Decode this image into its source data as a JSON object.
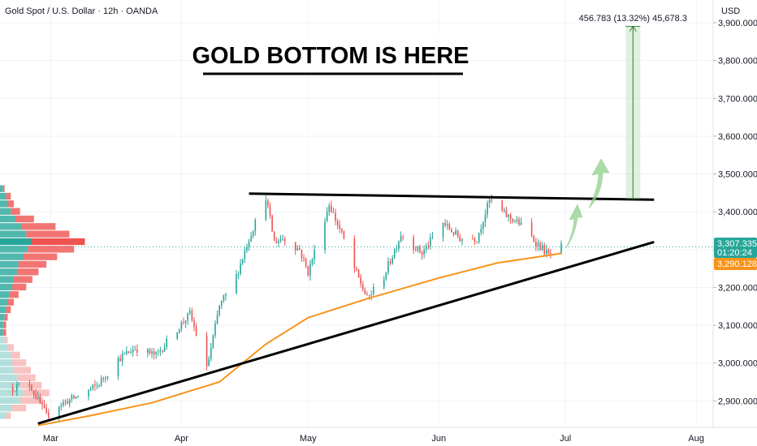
{
  "header": {
    "symbol_title": "Gold Spot / U.S. Dollar · 12h · OANDA",
    "currency": "USD"
  },
  "annotation": {
    "headline": "GOLD BOTTOM IS HERE",
    "measure_label": "456.783 (13.32%) 45,678.3"
  },
  "price_labels": {
    "last_price": "3,307.335",
    "countdown": "01:20:24",
    "ma_value": "3,290.128"
  },
  "colors": {
    "up": "#26a69a",
    "down": "#ef5350",
    "ma": "#f7931a",
    "trendline": "#000000",
    "projection": "#8fd18b",
    "last_price_badge": "#26a69a",
    "ma_badge": "#f7931a"
  },
  "chart_data": {
    "type": "candlestick",
    "symbol": "XAUUSD",
    "timeframe": "12h",
    "y_axis": {
      "ticks": [
        2900,
        3000,
        3100,
        3200,
        3300,
        3400,
        3500,
        3600,
        3700,
        3800,
        3900
      ],
      "tick_labels": [
        "2,900.000",
        "3,000.000",
        "3,100.000",
        "3,200.000",
        "3,300.000",
        "3,400.000",
        "3,500.000",
        "3,600.000",
        "3,700.000",
        "3,800.000",
        "3,900.000"
      ],
      "range": [
        2830,
        3960
      ]
    },
    "x_axis": {
      "tick_labels": [
        "Mar",
        "Apr",
        "May",
        "Jun",
        "Jul",
        "Aug"
      ],
      "tick_dates": [
        "2025-03-01",
        "2025-04-01",
        "2025-05-01",
        "2025-06-01",
        "2025-07-01",
        "2025-08-01"
      ],
      "range": [
        "2025-02-17",
        "2025-08-05"
      ]
    },
    "price_path": [
      [
        "2025-02-20",
        2935
      ],
      [
        "2025-02-24",
        2945
      ],
      [
        "2025-02-28",
        2860
      ],
      [
        "2025-03-03",
        2890
      ],
      [
        "2025-03-07",
        2910
      ],
      [
        "2025-03-12",
        2940
      ],
      [
        "2025-03-17",
        3010
      ],
      [
        "2025-03-21",
        3040
      ],
      [
        "2025-03-26",
        3020
      ],
      [
        "2025-03-31",
        3090
      ],
      [
        "2025-04-03",
        3130
      ],
      [
        "2025-04-07",
        2985
      ],
      [
        "2025-04-10",
        3150
      ],
      [
        "2025-04-14",
        3230
      ],
      [
        "2025-04-17",
        3330
      ],
      [
        "2025-04-21",
        3440
      ],
      [
        "2025-04-23",
        3320
      ],
      [
        "2025-04-25",
        3330
      ],
      [
        "2025-04-29",
        3300
      ],
      [
        "2025-05-01",
        3240
      ],
      [
        "2025-05-06",
        3420
      ],
      [
        "2025-05-09",
        3340
      ],
      [
        "2025-05-12",
        3250
      ],
      [
        "2025-05-15",
        3170
      ],
      [
        "2025-05-19",
        3230
      ],
      [
        "2025-05-23",
        3340
      ],
      [
        "2025-05-28",
        3290
      ],
      [
        "2025-06-02",
        3370
      ],
      [
        "2025-06-06",
        3330
      ],
      [
        "2025-06-10",
        3330
      ],
      [
        "2025-06-13",
        3430
      ],
      [
        "2025-06-17",
        3390
      ],
      [
        "2025-06-20",
        3370
      ],
      [
        "2025-06-24",
        3320
      ],
      [
        "2025-06-27",
        3285
      ],
      [
        "2025-06-30",
        3307
      ]
    ],
    "series": [
      {
        "name": "",
        "type": "moving-average",
        "points": [
          [
            "2025-02-26",
            2835
          ],
          [
            "2025-03-10",
            2860
          ],
          [
            "2025-03-25",
            2895
          ],
          [
            "2025-04-10",
            2950
          ],
          [
            "2025-04-21",
            3050
          ],
          [
            "2025-05-01",
            3120
          ],
          [
            "2025-05-15",
            3170
          ],
          [
            "2025-06-01",
            3225
          ],
          [
            "2025-06-15",
            3265
          ],
          [
            "2025-06-30",
            3290
          ]
        ]
      }
    ],
    "trendlines": [
      {
        "name": "resistance",
        "points": [
          [
            "2025-04-17",
            3448
          ],
          [
            "2025-07-22",
            3432
          ]
        ]
      },
      {
        "name": "support",
        "points": [
          [
            "2025-02-26",
            2840
          ],
          [
            "2025-07-22",
            3320
          ]
        ]
      }
    ],
    "measure": {
      "date": "2025-07-17",
      "from": 3433,
      "to": 3890,
      "label": "456.783 (13.32%) 45,678.3"
    },
    "volume_profile": {
      "price_bins": [
        3460,
        3440,
        3420,
        3400,
        3380,
        3360,
        3340,
        3320,
        3300,
        3280,
        3260,
        3240,
        3220,
        3200,
        3180,
        3160,
        3140,
        3120,
        3100,
        3080,
        3060,
        3040,
        3020,
        3000,
        2980,
        2960,
        2940,
        2920,
        2900,
        2880,
        2860
      ],
      "up": [
        2,
        4,
        5,
        7,
        10,
        14,
        17,
        20,
        18,
        15,
        12,
        11,
        9,
        8,
        6,
        5,
        4,
        3,
        2,
        2,
        3,
        5,
        7,
        8,
        9,
        11,
        13,
        15,
        13,
        8,
        4
      ],
      "down": [
        1,
        3,
        4,
        6,
        12,
        22,
        28,
        35,
        30,
        22,
        18,
        14,
        12,
        9,
        6,
        4,
        3,
        2,
        2,
        2,
        2,
        4,
        6,
        9,
        11,
        12,
        14,
        17,
        15,
        9,
        3
      ]
    }
  }
}
